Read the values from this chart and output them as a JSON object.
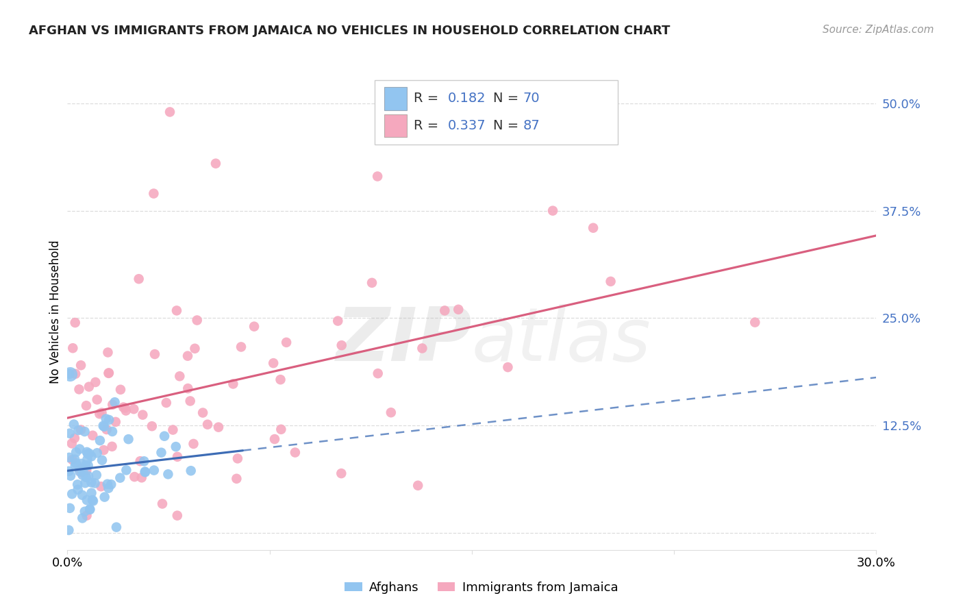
{
  "title": "AFGHAN VS IMMIGRANTS FROM JAMAICA NO VEHICLES IN HOUSEHOLD CORRELATION CHART",
  "source": "Source: ZipAtlas.com",
  "ylabel": "No Vehicles in Household",
  "yticks": [
    0.0,
    0.125,
    0.25,
    0.375,
    0.5
  ],
  "ytick_labels": [
    "",
    "12.5%",
    "25.0%",
    "37.5%",
    "50.0%"
  ],
  "xlim": [
    0.0,
    0.3
  ],
  "ylim": [
    -0.02,
    0.535
  ],
  "legend_label1": "Afghans",
  "legend_label2": "Immigrants from Jamaica",
  "blue_color": "#92C5F0",
  "pink_color": "#F5A8BE",
  "trend_blue": "#3D6CB5",
  "trend_pink": "#D95F7F",
  "background": "#FFFFFF",
  "grid_color": "#DDDDDD",
  "blue_R": "0.182",
  "blue_N": "70",
  "pink_R": "0.337",
  "pink_N": "87",
  "legend_text_color": "#333333",
  "legend_num_color": "#4472C4",
  "source_color": "#999999",
  "title_color": "#222222",
  "ytick_color": "#4472C4"
}
